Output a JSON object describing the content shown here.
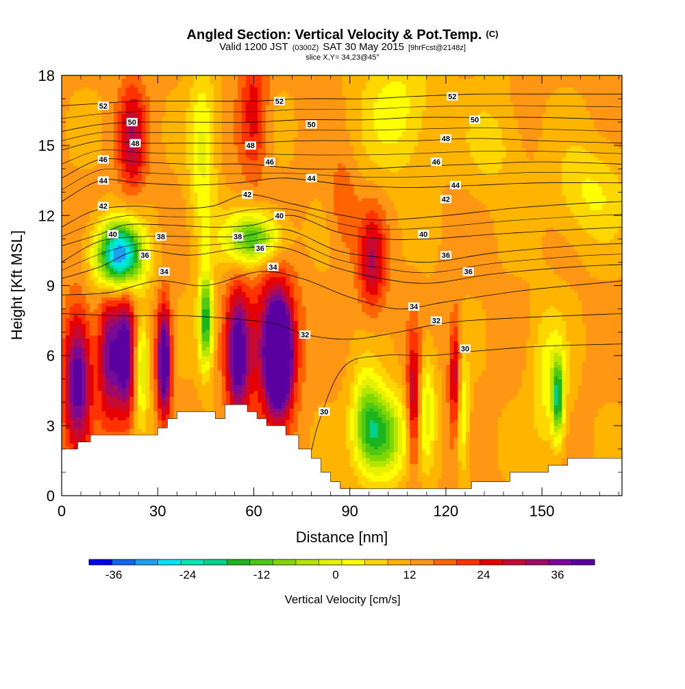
{
  "chart_data": {
    "type": "heatmap",
    "title": "Angled Section: Vertical Velocity & Pot.Temp.",
    "title_mark": "(C)",
    "subtitle": {
      "valid": "Valid 1200 JST",
      "utc": "(0300Z)",
      "date": "SAT 30 May 2015",
      "fcst": "[9hrFcst@2148z]"
    },
    "slice_text": "slice X,Y= 34,23@45°",
    "xlabel": "Distance [nm]",
    "ylabel": "Height [Kft MSL]",
    "xlim": [
      0,
      175
    ],
    "ylim": [
      0,
      18
    ],
    "x_ticks": [
      "0",
      "30",
      "60",
      "90",
      "120",
      "150"
    ],
    "y_ticks": [
      "0",
      "3",
      "6",
      "9",
      "12",
      "15",
      "18"
    ],
    "colorbar": {
      "label": "Vertical Velocity [cm/s]",
      "ticks": [
        "-36",
        "-24",
        "-12",
        "0",
        "12",
        "24",
        "36"
      ],
      "min": -40,
      "max": 42,
      "step": 3,
      "colors": [
        "#0000f0",
        "#1464f0",
        "#1ea0f0",
        "#00e6f0",
        "#00e6b4",
        "#00d28c",
        "#1eb41e",
        "#50c814",
        "#82d700",
        "#b4e600",
        "#e6f000",
        "#ffff00",
        "#ffd700",
        "#ffb400",
        "#ff9614",
        "#ff6400",
        "#ff3200",
        "#e60000",
        "#c80a32",
        "#a00a64",
        "#780a96",
        "#5a00a0"
      ]
    },
    "terrain": [
      [
        0,
        2.0
      ],
      [
        5,
        2.0
      ],
      [
        5,
        2.3
      ],
      [
        9,
        2.3
      ],
      [
        9,
        2.6
      ],
      [
        30,
        2.6
      ],
      [
        30,
        2.9
      ],
      [
        33,
        2.9
      ],
      [
        33,
        3.3
      ],
      [
        36,
        3.3
      ],
      [
        36,
        3.6
      ],
      [
        48,
        3.6
      ],
      [
        48,
        3.3
      ],
      [
        51,
        3.3
      ],
      [
        51,
        3.9
      ],
      [
        58,
        3.9
      ],
      [
        58,
        3.6
      ],
      [
        61,
        3.6
      ],
      [
        61,
        3.3
      ],
      [
        64,
        3.3
      ],
      [
        64,
        3.0
      ],
      [
        70,
        3.0
      ],
      [
        70,
        2.6
      ],
      [
        74,
        2.6
      ],
      [
        74,
        2.0
      ],
      [
        78,
        2.0
      ],
      [
        78,
        1.6
      ],
      [
        81,
        1.6
      ],
      [
        81,
        1.0
      ],
      [
        84,
        1.0
      ],
      [
        84,
        0.6
      ],
      [
        87,
        0.6
      ],
      [
        87,
        0.3
      ],
      [
        128,
        0.3
      ],
      [
        128,
        0.6
      ],
      [
        140,
        0.6
      ],
      [
        140,
        1.0
      ],
      [
        152,
        1.0
      ],
      [
        152,
        1.3
      ],
      [
        158,
        1.3
      ],
      [
        158,
        1.6
      ],
      [
        175,
        1.6
      ]
    ],
    "vv_features": [
      {
        "x": 18,
        "y": 10.3,
        "sx": 5,
        "sy": 1.0,
        "v": -38
      },
      {
        "x": 60,
        "y": 11.0,
        "sx": 6,
        "sy": 0.8,
        "v": -22
      },
      {
        "x": 45,
        "y": 7.5,
        "sx": 1.5,
        "sy": 1.4,
        "v": -24
      },
      {
        "x": 25,
        "y": 5.5,
        "sx": 1.5,
        "sy": 1.5,
        "v": -14
      },
      {
        "x": 100,
        "y": 2.6,
        "sx": 5,
        "sy": 1.3,
        "v": -22
      },
      {
        "x": 95,
        "y": 3.5,
        "sx": 3,
        "sy": 1.5,
        "v": -12
      },
      {
        "x": 155,
        "y": 4.2,
        "sx": 1.3,
        "sy": 1.2,
        "v": -22
      },
      {
        "x": 114,
        "y": 3.8,
        "sx": 2,
        "sy": 1.8,
        "v": -10
      },
      {
        "x": 125,
        "y": 3.5,
        "sx": 1.5,
        "sy": 1.8,
        "v": -12
      },
      {
        "x": 152,
        "y": 5.0,
        "sx": 4,
        "sy": 2.2,
        "v": -8
      },
      {
        "x": 105,
        "y": 16.5,
        "sx": 8,
        "sy": 2.0,
        "v": -8
      },
      {
        "x": 165,
        "y": 13.0,
        "sx": 8,
        "sy": 1.5,
        "v": -7
      },
      {
        "x": 135,
        "y": 15.0,
        "sx": 6,
        "sy": 1.5,
        "v": -5
      },
      {
        "x": 44,
        "y": 14.5,
        "sx": 3,
        "sy": 3.0,
        "v": -10
      },
      {
        "x": 5,
        "y": 5.0,
        "sx": 3,
        "sy": 2.0,
        "v": 24
      },
      {
        "x": 15,
        "y": 6.0,
        "sx": 2.5,
        "sy": 2.0,
        "v": 20
      },
      {
        "x": 20,
        "y": 6.0,
        "sx": 2,
        "sy": 2.0,
        "v": 22
      },
      {
        "x": 32,
        "y": 5.8,
        "sx": 1.5,
        "sy": 1.6,
        "v": 30
      },
      {
        "x": 55,
        "y": 6.0,
        "sx": 2.5,
        "sy": 2.0,
        "v": 24
      },
      {
        "x": 68,
        "y": 6.0,
        "sx": 2.5,
        "sy": 1.4,
        "v": 42
      },
      {
        "x": 66,
        "y": 6.5,
        "sx": 5,
        "sy": 2.3,
        "v": 18
      },
      {
        "x": 22,
        "y": 15.3,
        "sx": 3,
        "sy": 1.6,
        "v": 14
      },
      {
        "x": 60,
        "y": 16.5,
        "sx": 3,
        "sy": 2.0,
        "v": 10
      },
      {
        "x": 97,
        "y": 10.0,
        "sx": 3,
        "sy": 1.5,
        "v": 14
      },
      {
        "x": 110,
        "y": 4.0,
        "sx": 1.5,
        "sy": 2.0,
        "v": 16
      },
      {
        "x": 123,
        "y": 5.0,
        "sx": 1.3,
        "sy": 1.8,
        "v": 16
      },
      {
        "x": 88,
        "y": 12.5,
        "sx": 3,
        "sy": 1.5,
        "v": 5
      }
    ],
    "contours": [
      {
        "label": "30",
        "pts": [
          [
            76,
            0.5
          ],
          [
            80,
            3.0
          ],
          [
            88,
            5.5
          ],
          [
            100,
            6.0
          ],
          [
            115,
            6.0
          ],
          [
            130,
            6.2
          ],
          [
            150,
            6.4
          ],
          [
            175,
            6.5
          ]
        ],
        "labels_at": [
          [
            82,
            3.6
          ],
          [
            126,
            6.3
          ]
        ]
      },
      {
        "label": "32",
        "pts": [
          [
            0,
            7.8
          ],
          [
            20,
            7.7
          ],
          [
            40,
            7.7
          ],
          [
            65,
            7.4
          ],
          [
            76,
            6.9
          ],
          [
            90,
            6.7
          ],
          [
            105,
            7.0
          ],
          [
            120,
            7.4
          ],
          [
            140,
            7.6
          ],
          [
            175,
            7.8
          ]
        ],
        "labels_at": [
          [
            76,
            6.9
          ],
          [
            117,
            7.5
          ]
        ]
      },
      {
        "label": "34",
        "pts": [
          [
            0,
            8.6
          ],
          [
            15,
            8.7
          ],
          [
            30,
            9.2
          ],
          [
            45,
            9.0
          ],
          [
            62,
            9.6
          ],
          [
            75,
            9.3
          ],
          [
            90,
            8.5
          ],
          [
            105,
            8.0
          ],
          [
            120,
            8.3
          ],
          [
            145,
            8.8
          ],
          [
            175,
            9.2
          ]
        ],
        "labels_at": [
          [
            32,
            9.6
          ],
          [
            66,
            9.8
          ],
          [
            110,
            8.1
          ]
        ]
      },
      {
        "label": "36",
        "pts": [
          [
            0,
            9.3
          ],
          [
            12,
            9.8
          ],
          [
            24,
            10.5
          ],
          [
            40,
            10.3
          ],
          [
            56,
            10.6
          ],
          [
            70,
            10.6
          ],
          [
            85,
            9.8
          ],
          [
            100,
            9.3
          ],
          [
            115,
            9.1
          ],
          [
            135,
            9.5
          ],
          [
            160,
            9.8
          ],
          [
            175,
            9.9
          ]
        ],
        "labels_at": [
          [
            26,
            10.3
          ],
          [
            62,
            10.6
          ],
          [
            120,
            10.3
          ],
          [
            127,
            9.6
          ]
        ]
      },
      {
        "label": "38",
        "pts": [
          [
            0,
            10.0
          ],
          [
            12,
            10.9
          ],
          [
            26,
            11.1
          ],
          [
            40,
            11.1
          ],
          [
            56,
            11.1
          ],
          [
            70,
            11.4
          ],
          [
            86,
            10.5
          ],
          [
            100,
            10.2
          ],
          [
            115,
            10.0
          ],
          [
            135,
            10.4
          ],
          [
            160,
            10.7
          ],
          [
            175,
            10.8
          ]
        ],
        "labels_at": [
          [
            31,
            11.1
          ],
          [
            55,
            11.1
          ]
        ]
      },
      {
        "label": "40",
        "pts": [
          [
            0,
            10.7
          ],
          [
            12,
            11.2
          ],
          [
            20,
            11.6
          ],
          [
            32,
            11.6
          ],
          [
            48,
            11.5
          ],
          [
            60,
            11.6
          ],
          [
            72,
            12.0
          ],
          [
            86,
            11.3
          ],
          [
            100,
            11.0
          ],
          [
            115,
            11.0
          ],
          [
            135,
            11.2
          ],
          [
            160,
            11.4
          ],
          [
            175,
            11.5
          ]
        ],
        "labels_at": [
          [
            16,
            11.2
          ],
          [
            68,
            12.0
          ],
          [
            113,
            11.2
          ]
        ]
      },
      {
        "label": "42",
        "pts": [
          [
            0,
            11.5
          ],
          [
            10,
            12.2
          ],
          [
            22,
            12.4
          ],
          [
            35,
            12.3
          ],
          [
            47,
            12.4
          ],
          [
            58,
            12.9
          ],
          [
            72,
            12.5
          ],
          [
            88,
            12.0
          ],
          [
            100,
            11.8
          ],
          [
            120,
            12.0
          ],
          [
            140,
            12.3
          ],
          [
            160,
            12.5
          ],
          [
            175,
            12.6
          ]
        ],
        "labels_at": [
          [
            13,
            12.4
          ],
          [
            58,
            12.9
          ],
          [
            120,
            12.7
          ]
        ]
      },
      {
        "label": "44",
        "pts": [
          [
            0,
            12.6
          ],
          [
            12,
            13.5
          ],
          [
            24,
            13.4
          ],
          [
            40,
            13.3
          ],
          [
            55,
            13.4
          ],
          [
            70,
            13.6
          ],
          [
            90,
            13.3
          ],
          [
            110,
            13.2
          ],
          [
            130,
            13.3
          ],
          [
            150,
            13.4
          ],
          [
            175,
            13.4
          ]
        ],
        "labels_at": [
          [
            13,
            13.5
          ],
          [
            78,
            13.6
          ],
          [
            123,
            13.3
          ]
        ]
      },
      {
        "label": "46",
        "pts": [
          [
            0,
            13.6
          ],
          [
            12,
            14.4
          ],
          [
            24,
            14.3
          ],
          [
            40,
            14.2
          ],
          [
            58,
            14.2
          ],
          [
            75,
            14.0
          ],
          [
            95,
            14.0
          ],
          [
            110,
            14.1
          ],
          [
            130,
            14.2
          ],
          [
            150,
            14.3
          ],
          [
            175,
            14.2
          ]
        ],
        "labels_at": [
          [
            13,
            14.4
          ],
          [
            65,
            14.3
          ],
          [
            117,
            14.3
          ]
        ]
      },
      {
        "label": "48",
        "pts": [
          [
            0,
            14.8
          ],
          [
            12,
            15.2
          ],
          [
            24,
            15.1
          ],
          [
            40,
            15.1
          ],
          [
            58,
            15.1
          ],
          [
            75,
            15.2
          ],
          [
            95,
            15.2
          ],
          [
            110,
            15.2
          ],
          [
            130,
            15.3
          ],
          [
            150,
            15.2
          ],
          [
            175,
            15.1
          ]
        ],
        "labels_at": [
          [
            23,
            15.1
          ],
          [
            59,
            15.0
          ],
          [
            120,
            15.3
          ]
        ]
      },
      {
        "label": "50",
        "pts": [
          [
            0,
            15.6
          ],
          [
            12,
            15.9
          ],
          [
            24,
            16.0
          ],
          [
            40,
            16.0
          ],
          [
            60,
            16.0
          ],
          [
            75,
            16.1
          ],
          [
            95,
            16.1
          ],
          [
            110,
            16.2
          ],
          [
            130,
            16.2
          ],
          [
            150,
            16.2
          ],
          [
            175,
            16.1
          ]
        ],
        "labels_at": [
          [
            22,
            16.0
          ],
          [
            78,
            15.9
          ],
          [
            129,
            16.1
          ]
        ]
      },
      {
        "label": "52",
        "pts": [
          [
            0,
            16.7
          ],
          [
            12,
            16.8
          ],
          [
            24,
            16.9
          ],
          [
            40,
            16.9
          ],
          [
            60,
            16.9
          ],
          [
            75,
            17.0
          ],
          [
            95,
            17.0
          ],
          [
            110,
            17.1
          ],
          [
            130,
            17.2
          ],
          [
            150,
            17.2
          ],
          [
            175,
            17.2
          ]
        ],
        "labels_at": [
          [
            13,
            16.7
          ],
          [
            68,
            16.9
          ],
          [
            122,
            17.1
          ]
        ]
      }
    ]
  }
}
